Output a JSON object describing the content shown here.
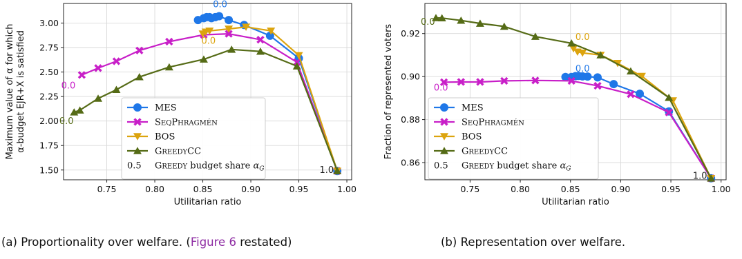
{
  "colors": {
    "mes": "#1f77e8",
    "seqphragmen": "#c81fc8",
    "bos": "#dca40e",
    "greedycc": "#556b16"
  },
  "captions": {
    "a_prefix": "(a) Proportionality over welfare. (",
    "a_ref": "Figure 6",
    "a_suffix": " restated)",
    "b": "(b) Representation over welfare."
  },
  "chart_data": [
    {
      "type": "line",
      "xlabel": "Utilitarian ratio",
      "ylabel_line1": "Maximum value of α for which",
      "ylabel_line2": "α-budget EJR+X is satisfied",
      "xlim": [
        0.705,
        1.005
      ],
      "ylim": [
        1.4,
        3.2
      ],
      "xticks": [
        "0.75",
        "0.80",
        "0.85",
        "0.90",
        "0.95",
        "1.00"
      ],
      "xtick_values": [
        0.75,
        0.8,
        0.85,
        0.9,
        0.95,
        1.0
      ],
      "yticks": [
        "1.50",
        "1.75",
        "2.00",
        "2.25",
        "2.50",
        "2.75",
        "3.00"
      ],
      "ytick_values": [
        1.5,
        1.75,
        2.0,
        2.25,
        2.5,
        2.75,
        3.0
      ],
      "grid": true,
      "legend": {
        "position": "lower-center",
        "entries": [
          "MES",
          "SeqPhragmén",
          "BOS",
          "GreedyCC"
        ],
        "note_value": "0.5",
        "note_text": "Greedy budget share α_G"
      },
      "series": [
        {
          "name": "MES",
          "marker": "circle",
          "x": [
            0.845,
            0.851,
            0.854,
            0.857,
            0.859,
            0.863,
            0.867,
            0.877,
            0.893,
            0.92,
            0.95,
            0.99
          ],
          "y": [
            3.03,
            3.05,
            3.06,
            3.06,
            3.05,
            3.06,
            3.07,
            3.03,
            2.98,
            2.87,
            2.64,
            1.49
          ]
        },
        {
          "name": "SeqPhragmén",
          "marker": "x",
          "x": [
            0.724,
            0.741,
            0.76,
            0.784,
            0.815,
            0.851,
            0.877,
            0.91,
            0.948,
            0.99
          ],
          "y": [
            2.47,
            2.54,
            2.61,
            2.72,
            2.81,
            2.88,
            2.89,
            2.83,
            2.6,
            1.49
          ]
        },
        {
          "name": "BOS",
          "marker": "triangle-down",
          "x": [
            0.85,
            0.853,
            0.857,
            0.877,
            0.895,
            0.921,
            0.95,
            0.99
          ],
          "y": [
            2.89,
            2.91,
            2.92,
            2.94,
            2.96,
            2.92,
            2.67,
            1.49
          ]
        },
        {
          "name": "GreedyCC",
          "marker": "triangle-up",
          "x": [
            0.716,
            0.722,
            0.741,
            0.76,
            0.784,
            0.815,
            0.851,
            0.88,
            0.91,
            0.948,
            0.99
          ],
          "y": [
            2.09,
            2.11,
            2.23,
            2.32,
            2.45,
            2.55,
            2.63,
            2.73,
            2.71,
            2.56,
            1.49
          ]
        }
      ],
      "annotations": [
        {
          "text": "0.0",
          "series": "MES",
          "x": 0.868,
          "y": 3.16
        },
        {
          "text": "0.0",
          "series": "SeqPhragmén",
          "x": 0.71,
          "y": 2.33
        },
        {
          "text": "0.0",
          "series": "BOS",
          "x": 0.856,
          "y": 2.79
        },
        {
          "text": "0.0",
          "series": "GreedyCC",
          "x": 0.708,
          "y": 1.97
        },
        {
          "text": "1.0",
          "series": "GreedyCC",
          "x": 0.979,
          "y": 1.47
        }
      ]
    },
    {
      "type": "line",
      "xlabel": "Utilitarian ratio",
      "ylabel": "Fraction of represented voters",
      "xlim": [
        0.705,
        1.005
      ],
      "ylim": [
        0.852,
        0.934
      ],
      "xticks": [
        "0.75",
        "0.80",
        "0.85",
        "0.90",
        "0.95",
        "1.00"
      ],
      "xtick_values": [
        0.75,
        0.8,
        0.85,
        0.9,
        0.95,
        1.0
      ],
      "yticks": [
        "0.86",
        "0.88",
        "0.90",
        "0.92"
      ],
      "ytick_values": [
        0.86,
        0.88,
        0.9,
        0.92
      ],
      "grid": true,
      "legend": {
        "position": "lower-left",
        "entries": [
          "MES",
          "SeqPhragmén",
          "BOS",
          "GreedyCC"
        ],
        "note_value": "0.5",
        "note_text": "Greedy budget share α_G"
      },
      "series": [
        {
          "name": "MES",
          "marker": "circle",
          "x": [
            0.845,
            0.851,
            0.855,
            0.858,
            0.862,
            0.867,
            0.877,
            0.893,
            0.919,
            0.948,
            0.99
          ],
          "y": [
            0.8998,
            0.8998,
            0.9002,
            0.9003,
            0.9001,
            0.9,
            0.8996,
            0.8965,
            0.892,
            0.8838,
            0.8527
          ]
        },
        {
          "name": "SeqPhragmén",
          "marker": "x",
          "x": [
            0.724,
            0.741,
            0.76,
            0.784,
            0.815,
            0.851,
            0.877,
            0.91,
            0.948,
            0.99
          ],
          "y": [
            0.8974,
            0.8975,
            0.8975,
            0.898,
            0.8982,
            0.898,
            0.8957,
            0.8918,
            0.8833,
            0.8527
          ]
        },
        {
          "name": "BOS",
          "marker": "triangle-down",
          "x": [
            0.853,
            0.857,
            0.862,
            0.88,
            0.897,
            0.921,
            0.952,
            0.99
          ],
          "y": [
            0.913,
            0.9115,
            0.911,
            0.91,
            0.9062,
            0.9002,
            0.8888,
            0.8527
          ]
        },
        {
          "name": "GreedyCC",
          "marker": "triangle-up",
          "x": [
            0.716,
            0.722,
            0.741,
            0.76,
            0.784,
            0.815,
            0.851,
            0.88,
            0.91,
            0.948,
            0.99
          ],
          "y": [
            0.9273,
            0.9272,
            0.9261,
            0.9247,
            0.9233,
            0.9186,
            0.9155,
            0.91,
            0.9025,
            0.8902,
            0.8527
          ]
        }
      ],
      "annotations": [
        {
          "text": "0.0",
          "series": "MES",
          "x": 0.862,
          "y": 0.9023
        },
        {
          "text": "0.0",
          "series": "SeqPhragmén",
          "x": 0.721,
          "y": 0.8935
        },
        {
          "text": "0.0",
          "series": "BOS",
          "x": 0.862,
          "y": 0.917
        },
        {
          "text": "0.0",
          "series": "GreedyCC",
          "x": 0.708,
          "y": 0.924
        },
        {
          "text": "1.0",
          "series": "GreedyCC",
          "x": 0.979,
          "y": 0.8525
        }
      ]
    }
  ]
}
